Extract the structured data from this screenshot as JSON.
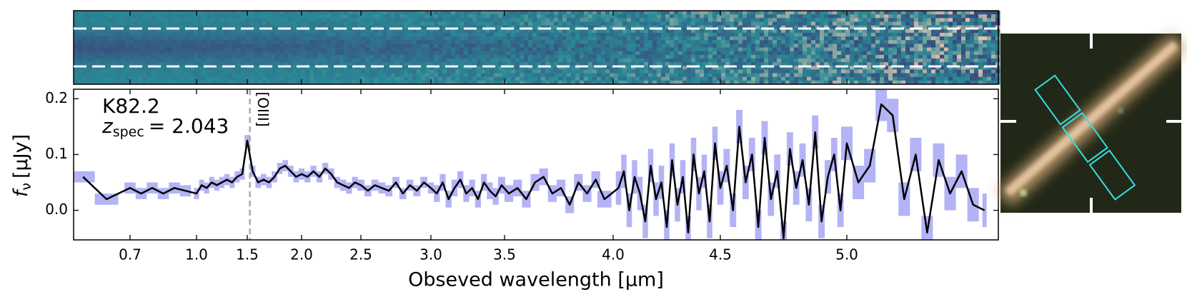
{
  "chart_data": {
    "type": "line",
    "object_label": "K82.2",
    "redshift_label": {
      "symbol": "z",
      "subscript": "spec",
      "text": "= 2.043"
    },
    "xlabel": "Obseved wavelength [μm]",
    "ylabel": {
      "symbol": "f",
      "subscript": "ν",
      "text": "[μJy]"
    },
    "xlim": [
      0.58,
      5.33
    ],
    "xticks": [
      0.7,
      {
        "value": 1.0,
        "label": "1.0"
      },
      1.5,
      {
        "value": 2.0,
        "label": "2.0"
      },
      2.5,
      {
        "value": 3.0,
        "label": "3.0"
      },
      3.5,
      {
        "value": 4.0,
        "label": "4.0"
      },
      4.5,
      {
        "value": 5.0,
        "label": "5.0"
      }
    ],
    "ylim": [
      -0.053,
      0.217
    ],
    "yticks": [
      {
        "value": 0,
        "label": "0.0"
      },
      0.1,
      0.2
    ],
    "line_marker": {
      "x": 1.524,
      "label": "[OIII]",
      "color": "#aaaaaa"
    },
    "series": [
      {
        "color": "#000000",
        "error_color": "#b3b3f5",
        "x": [
          0.6,
          0.65,
          0.7,
          0.75,
          0.8,
          0.85,
          0.9,
          0.95,
          1.0,
          1.05,
          1.1,
          1.15,
          1.2,
          1.25,
          1.3,
          1.35,
          1.4,
          1.45,
          1.5,
          1.55,
          1.6,
          1.65,
          1.7,
          1.75,
          1.8,
          1.85,
          1.9,
          1.95,
          2.0,
          2.05,
          2.1,
          2.15,
          2.2,
          2.25,
          2.3,
          2.35,
          2.4,
          2.45,
          2.5,
          2.55,
          2.6,
          2.65,
          2.7,
          2.75,
          2.8,
          2.85,
          2.9,
          2.95,
          3.0,
          3.04,
          3.08,
          3.12,
          3.16,
          3.2,
          3.24,
          3.28,
          3.32,
          3.36,
          3.4,
          3.44,
          3.48,
          3.52,
          3.56,
          3.6,
          3.64,
          3.68,
          3.72,
          3.76,
          3.8,
          3.84,
          3.88,
          3.92,
          3.96,
          4.025,
          4.05,
          4.075,
          4.1,
          4.125,
          4.15,
          4.175,
          4.2,
          4.225,
          4.25,
          4.275,
          4.3,
          4.325,
          4.35,
          4.375,
          4.4,
          4.425,
          4.45,
          4.475,
          4.5,
          4.525,
          4.55,
          4.575,
          4.6,
          4.625,
          4.65,
          4.675,
          4.7,
          4.725,
          4.75,
          4.775,
          4.8,
          4.825,
          4.85,
          4.875,
          4.9,
          4.925,
          4.95,
          4.975,
          5.0,
          5.025,
          5.05,
          5.075,
          5.1,
          5.125,
          5.15,
          5.175,
          5.2,
          5.225,
          5.25,
          5.275,
          5.3
        ],
        "values": [
          0.06,
          0.02,
          0.04,
          0.03,
          0.04,
          0.03,
          0.04,
          0.035,
          0.03,
          0.045,
          0.04,
          0.05,
          0.045,
          0.05,
          0.055,
          0.05,
          0.06,
          0.065,
          0.125,
          0.07,
          0.05,
          0.055,
          0.05,
          0.06,
          0.075,
          0.08,
          0.07,
          0.06,
          0.065,
          0.06,
          0.07,
          0.06,
          0.075,
          0.065,
          0.05,
          0.045,
          0.04,
          0.05,
          0.045,
          0.035,
          0.045,
          0.04,
          0.035,
          0.05,
          0.03,
          0.045,
          0.035,
          0.05,
          0.04,
          0.03,
          0.05,
          0.02,
          0.04,
          0.055,
          0.03,
          0.04,
          0.02,
          0.05,
          0.035,
          0.025,
          0.045,
          0.03,
          0.04,
          0.02,
          0.05,
          0.06,
          0.03,
          0.04,
          0.01,
          0.05,
          0.03,
          0.055,
          0.02,
          0.04,
          0.07,
          0.0,
          0.06,
          0.03,
          -0.02,
          0.08,
          0.02,
          0.05,
          -0.03,
          0.09,
          0.01,
          0.06,
          -0.04,
          0.1,
          0.03,
          0.07,
          -0.02,
          0.12,
          0.04,
          0.08,
          0.0,
          0.15,
          0.05,
          0.1,
          -0.03,
          0.13,
          0.02,
          0.07,
          -0.05,
          0.11,
          0.04,
          0.09,
          0.01,
          0.14,
          -0.02,
          0.06,
          0.1,
          0.0,
          0.12,
          0.05,
          0.08,
          0.19,
          0.17,
          0.02,
          0.1,
          -0.04,
          0.09,
          0.03,
          0.07,
          0.01,
          0.0
        ],
        "errors": [
          0.01,
          0.01,
          0.01,
          0.01,
          0.01,
          0.01,
          0.01,
          0.01,
          0.01,
          0.01,
          0.01,
          0.01,
          0.01,
          0.01,
          0.01,
          0.01,
          0.01,
          0.01,
          0.01,
          0.01,
          0.01,
          0.01,
          0.01,
          0.01,
          0.01,
          0.01,
          0.01,
          0.01,
          0.01,
          0.01,
          0.01,
          0.01,
          0.01,
          0.01,
          0.01,
          0.01,
          0.01,
          0.01,
          0.01,
          0.01,
          0.01,
          0.01,
          0.01,
          0.01,
          0.01,
          0.01,
          0.01,
          0.01,
          0.01,
          0.015,
          0.015,
          0.015,
          0.015,
          0.015,
          0.015,
          0.015,
          0.015,
          0.015,
          0.015,
          0.015,
          0.015,
          0.015,
          0.015,
          0.015,
          0.015,
          0.015,
          0.015,
          0.015,
          0.015,
          0.015,
          0.015,
          0.015,
          0.015,
          0.03,
          0.03,
          0.03,
          0.03,
          0.03,
          0.03,
          0.03,
          0.03,
          0.03,
          0.03,
          0.03,
          0.03,
          0.03,
          0.03,
          0.03,
          0.03,
          0.03,
          0.03,
          0.03,
          0.03,
          0.03,
          0.03,
          0.03,
          0.03,
          0.03,
          0.03,
          0.03,
          0.03,
          0.03,
          0.03,
          0.03,
          0.03,
          0.03,
          0.03,
          0.03,
          0.03,
          0.03,
          0.03,
          0.03,
          0.03,
          0.03,
          0.03,
          0.03,
          0.03,
          0.03,
          0.03,
          0.03,
          0.03,
          0.03,
          0.03,
          0.03,
          0.03
        ]
      }
    ]
  }
}
